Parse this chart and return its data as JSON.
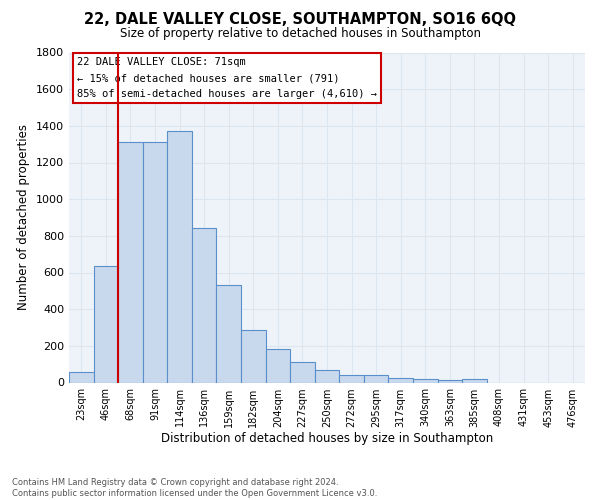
{
  "title": "22, DALE VALLEY CLOSE, SOUTHAMPTON, SO16 6QQ",
  "subtitle": "Size of property relative to detached houses in Southampton",
  "xlabel": "Distribution of detached houses by size in Southampton",
  "ylabel": "Number of detached properties",
  "footer_line1": "Contains HM Land Registry data © Crown copyright and database right 2024.",
  "footer_line2": "Contains public sector information licensed under the Open Government Licence v3.0.",
  "bin_labels": [
    "23sqm",
    "46sqm",
    "68sqm",
    "91sqm",
    "114sqm",
    "136sqm",
    "159sqm",
    "182sqm",
    "204sqm",
    "227sqm",
    "250sqm",
    "272sqm",
    "295sqm",
    "317sqm",
    "340sqm",
    "363sqm",
    "385sqm",
    "408sqm",
    "431sqm",
    "453sqm",
    "476sqm"
  ],
  "bar_values": [
    60,
    635,
    1310,
    1310,
    1370,
    845,
    530,
    285,
    185,
    110,
    70,
    40,
    40,
    25,
    20,
    15,
    18,
    0,
    0,
    0,
    0
  ],
  "bar_color": "#c8d9ed",
  "bar_edge_color": "#5b8fc9",
  "grid_color": "#dce6f1",
  "background_color": "#eef3f9",
  "annotation_line1": "22 DALE VALLEY CLOSE: 71sqm",
  "annotation_line2": "← 15% of detached houses are smaller (791)",
  "annotation_line3": "85% of semi-detached houses are larger (4,610) →",
  "annotation_box_color": "#ffffff",
  "annotation_box_edge_color": "#cc0000",
  "red_line_index": 2,
  "ylim": [
    0,
    1800
  ],
  "yticks": [
    0,
    200,
    400,
    600,
    800,
    1000,
    1200,
    1400,
    1600,
    1800
  ]
}
